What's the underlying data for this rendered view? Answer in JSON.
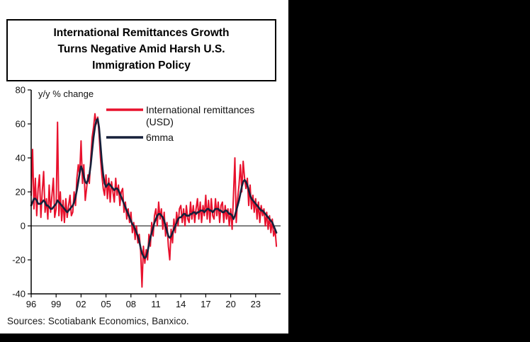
{
  "title_lines": [
    "International Remittances Growth",
    "Turns Negative Amid Harsh U.S.",
    "Immigration Policy"
  ],
  "sources": "Sources: Scotiabank Economics, Banxico.",
  "colors": {
    "remittances": "#e8112d",
    "mma": "#16203a",
    "axis": "#000000",
    "panel_bg": "#ffffff",
    "outer_bg": "#000000"
  },
  "chart_data": {
    "type": "line",
    "title": "International Remittances Growth Turns Negative Amid Harsh U.S. Immigration Policy",
    "annotation": "y/y % change",
    "xlabel": "",
    "ylabel": "",
    "xlim": [
      1996,
      2026
    ],
    "ylim": [
      -40,
      80
    ],
    "grid": false,
    "zero_line": true,
    "legend_position": "top-inside",
    "y_ticks": [
      80,
      60,
      40,
      20,
      0,
      -20,
      -40
    ],
    "x_tick_years": [
      1996,
      1999,
      2002,
      2005,
      2008,
      2011,
      2014,
      2017,
      2020,
      2023
    ],
    "x_tick_labels": [
      "96",
      "99",
      "02",
      "05",
      "08",
      "11",
      "14",
      "17",
      "20",
      "23"
    ],
    "x_start": 1996,
    "x_step_years": 0.166667,
    "legend": {
      "series1_line1": "International remittances",
      "series1_line2": "(USD)",
      "series2": "6mma"
    },
    "series": [
      {
        "name": "International remittances (USD)",
        "color": "#e8112d",
        "values": [
          18,
          45,
          10,
          28,
          6,
          22,
          30,
          5,
          20,
          32,
          8,
          16,
          4,
          24,
          8,
          18,
          28,
          5,
          10,
          61,
          6,
          20,
          3,
          15,
          2,
          16,
          5,
          12,
          18,
          6,
          8,
          20,
          12,
          28,
          36,
          30,
          50,
          25,
          36,
          15,
          22,
          30,
          25,
          40,
          52,
          58,
          66,
          60,
          64,
          54,
          40,
          30,
          22,
          18,
          30,
          16,
          28,
          14,
          26,
          20,
          14,
          28,
          18,
          24,
          12,
          20,
          22,
          8,
          14,
          4,
          10,
          2,
          8,
          -4,
          2,
          -8,
          0,
          -10,
          -5,
          -15,
          -36,
          -12,
          -22,
          -14,
          -20,
          -5,
          -12,
          2,
          -6,
          6,
          10,
          0,
          14,
          4,
          10,
          -2,
          8,
          -6,
          2,
          -12,
          -20,
          -2,
          -10,
          4,
          -4,
          8,
          0,
          10,
          12,
          2,
          10,
          0,
          12,
          4,
          2,
          14,
          4,
          12,
          2,
          10,
          16,
          4,
          14,
          2,
          12,
          6,
          18,
          4,
          15,
          2,
          16,
          6,
          4,
          16,
          6,
          14,
          2,
          12,
          14,
          2,
          12,
          4,
          10,
          0,
          10,
          -2,
          18,
          40,
          2,
          16,
          24,
          36,
          20,
          38,
          28,
          22,
          28,
          12,
          24,
          10,
          18,
          8,
          16,
          4,
          14,
          2,
          12,
          6,
          10,
          0,
          8,
          -2,
          6,
          -4,
          4,
          -6,
          -2,
          -12
        ]
      },
      {
        "name": "6mma",
        "color": "#16203a",
        "values": [
          12,
          14,
          16,
          16,
          15,
          13,
          13,
          13,
          14,
          15,
          14,
          12,
          12,
          11,
          10,
          10,
          11,
          12,
          13,
          15,
          14,
          13,
          12,
          11,
          10,
          9,
          8,
          9,
          10,
          11,
          12,
          14,
          17,
          21,
          26,
          31,
          35,
          33,
          29,
          26,
          25,
          27,
          30,
          36,
          44,
          52,
          58,
          62,
          63,
          58,
          48,
          38,
          30,
          25,
          23,
          24,
          25,
          24,
          23,
          22,
          21,
          22,
          22,
          21,
          19,
          17,
          15,
          13,
          11,
          9,
          7,
          5,
          3,
          1,
          0,
          -2,
          -4,
          -6,
          -9,
          -13,
          -16,
          -18,
          -19,
          -18,
          -15,
          -11,
          -7,
          -4,
          -1,
          2,
          4,
          6,
          7,
          7,
          6,
          5,
          3,
          0,
          -3,
          -6,
          -7,
          -6,
          -4,
          -2,
          0,
          2,
          4,
          5,
          5,
          6,
          7,
          7,
          6,
          6,
          6,
          7,
          7,
          8,
          8,
          7,
          8,
          8,
          9,
          9,
          9,
          8,
          9,
          10,
          10,
          9,
          9,
          8,
          9,
          10,
          10,
          10,
          9,
          9,
          8,
          8,
          9,
          9,
          8,
          7,
          7,
          6,
          4,
          6,
          9,
          12,
          15,
          19,
          23,
          26,
          27,
          26,
          24,
          21,
          18,
          16,
          15,
          14,
          13,
          12,
          11,
          10,
          9,
          9,
          8,
          7,
          6,
          5,
          4,
          3,
          2,
          0,
          -2,
          -4
        ]
      }
    ]
  }
}
